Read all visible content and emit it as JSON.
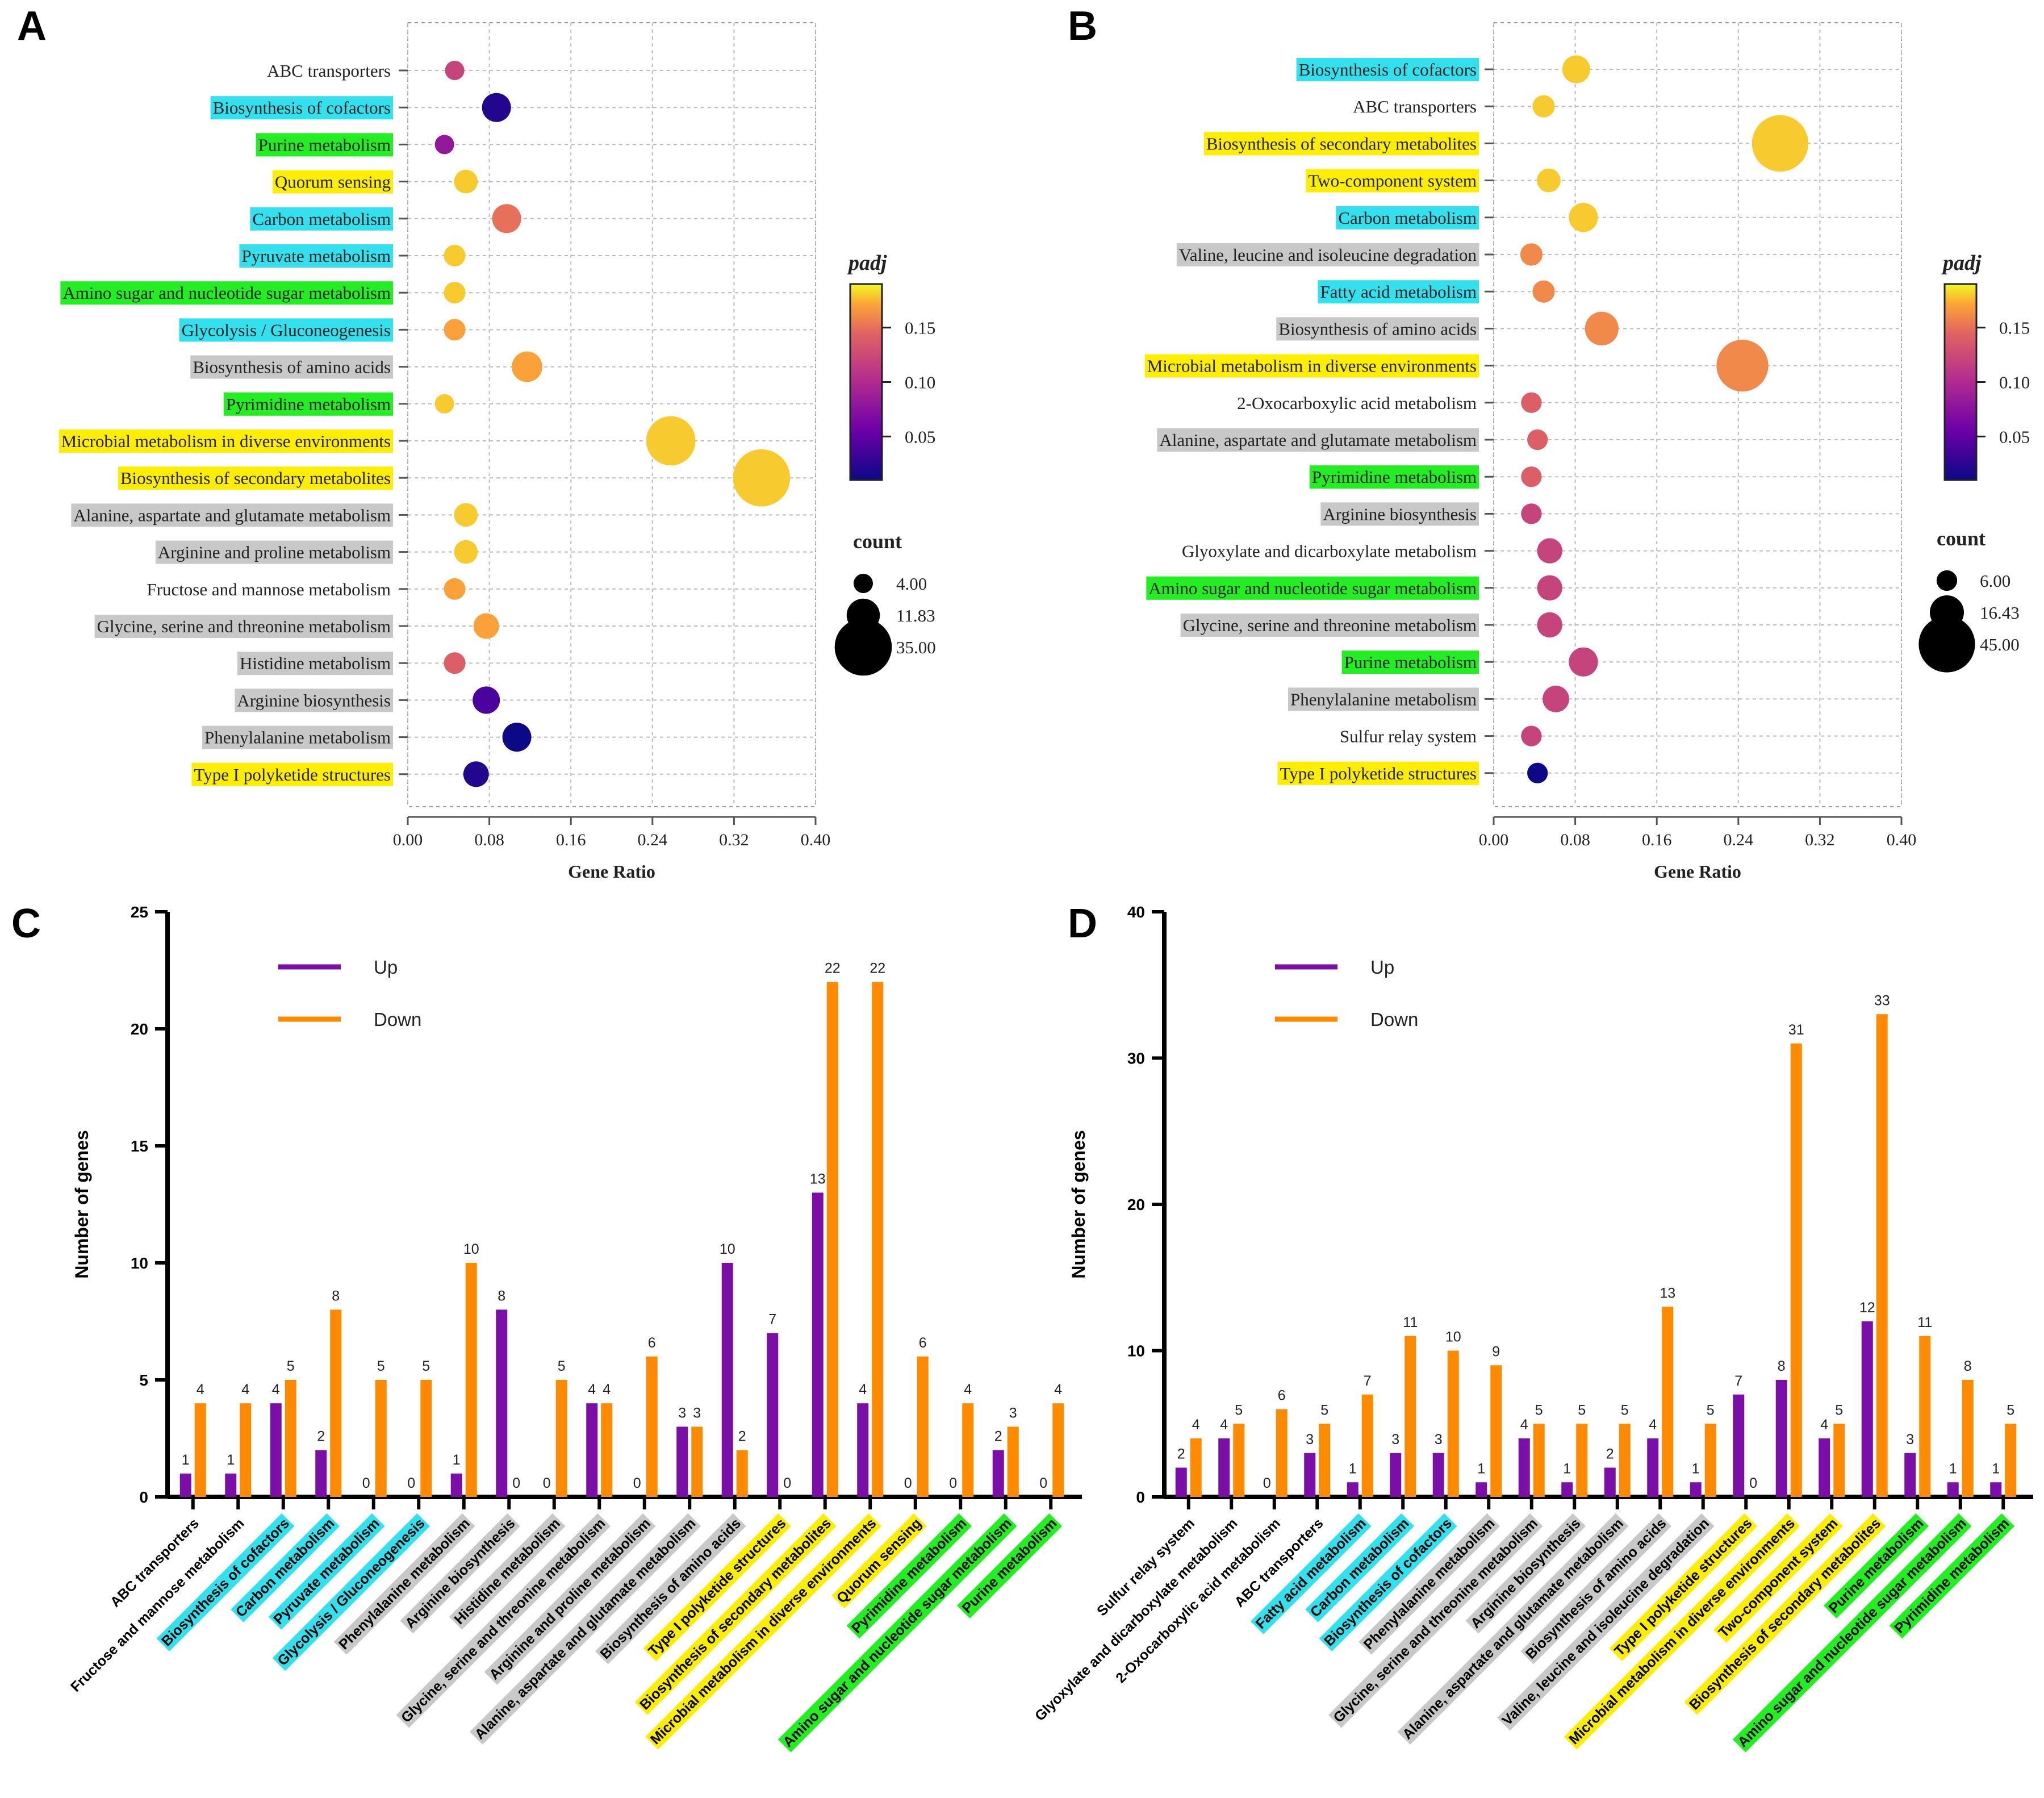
{
  "panel_letters": [
    "A",
    "B",
    "C",
    "D"
  ],
  "colors": {
    "cyan": "#33e0ee",
    "green": "#22ee22",
    "yellow": "#ffee00",
    "gray": "#c8c8c8",
    "up": "#7a0ea6",
    "down": "#ff8a00"
  },
  "chart_data": [
    {
      "panel": "A",
      "type": "scatter",
      "xlabel": "Gene Ratio",
      "xlim": [
        0.0,
        0.4
      ],
      "xticks": [
        "0.00",
        "0.08",
        "0.16",
        "0.24",
        "0.32",
        "0.40"
      ],
      "colorbar": {
        "title": "padj",
        "ticks": [
          "0.15",
          "0.10",
          "0.05"
        ],
        "tick_values": [
          0.15,
          0.1,
          0.05
        ],
        "range": [
          0.01,
          0.19
        ]
      },
      "size_legend": {
        "title": "count",
        "labels": [
          "4.00",
          "11.83",
          "35.00"
        ],
        "values": [
          4,
          11.83,
          35
        ]
      },
      "points": [
        {
          "term": "ABC transporters",
          "highlight": "none",
          "ratio": 0.046,
          "count": 4,
          "padj": 0.12
        },
        {
          "term": "Biosynthesis of cofactors",
          "highlight": "cyan",
          "ratio": 0.087,
          "count": 9,
          "padj": 0.02
        },
        {
          "term": "Purine metabolism",
          "highlight": "green",
          "ratio": 0.036,
          "count": 4,
          "padj": 0.08
        },
        {
          "term": "Quorum sensing",
          "highlight": "yellow",
          "ratio": 0.057,
          "count": 6,
          "padj": 0.18
        },
        {
          "term": "Carbon metabolism",
          "highlight": "cyan",
          "ratio": 0.097,
          "count": 9,
          "padj": 0.15
        },
        {
          "term": "Pyruvate metabolism",
          "highlight": "cyan",
          "ratio": 0.046,
          "count": 5,
          "padj": 0.18
        },
        {
          "term": "Amino sugar and nucleotide sugar metabolism",
          "highlight": "green",
          "ratio": 0.046,
          "count": 5,
          "padj": 0.18
        },
        {
          "term": "Glycolysis / Gluconeogenesis",
          "highlight": "cyan",
          "ratio": 0.046,
          "count": 5,
          "padj": 0.17
        },
        {
          "term": "Biosynthesis of amino acids",
          "highlight": "gray",
          "ratio": 0.117,
          "count": 10,
          "padj": 0.17
        },
        {
          "term": "Pyrimidine metabolism",
          "highlight": "green",
          "ratio": 0.036,
          "count": 4,
          "padj": 0.18
        },
        {
          "term": "Microbial metabolism in diverse environments",
          "highlight": "yellow",
          "ratio": 0.258,
          "count": 26,
          "padj": 0.18
        },
        {
          "term": "Biosynthesis of secondary metabolites",
          "highlight": "yellow",
          "ratio": 0.347,
          "count": 35,
          "padj": 0.18
        },
        {
          "term": "Alanine, aspartate and glutamate metabolism",
          "highlight": "gray",
          "ratio": 0.057,
          "count": 6,
          "padj": 0.18
        },
        {
          "term": "Arginine and proline metabolism",
          "highlight": "gray",
          "ratio": 0.057,
          "count": 6,
          "padj": 0.18
        },
        {
          "term": "Fructose and mannose metabolism",
          "highlight": "none",
          "ratio": 0.046,
          "count": 5,
          "padj": 0.17
        },
        {
          "term": "Glycine, serine and threonine metabolism",
          "highlight": "gray",
          "ratio": 0.077,
          "count": 7,
          "padj": 0.17
        },
        {
          "term": "Histidine metabolism",
          "highlight": "gray",
          "ratio": 0.046,
          "count": 5,
          "padj": 0.14
        },
        {
          "term": "Arginine biosynthesis",
          "highlight": "gray",
          "ratio": 0.077,
          "count": 8,
          "padj": 0.04
        },
        {
          "term": "Phenylalanine metabolism",
          "highlight": "gray",
          "ratio": 0.107,
          "count": 9,
          "padj": 0.01
        },
        {
          "term": "Type I polyketide structures",
          "highlight": "yellow",
          "ratio": 0.067,
          "count": 7,
          "padj": 0.02
        }
      ]
    },
    {
      "panel": "B",
      "type": "scatter",
      "xlabel": "Gene Ratio",
      "xlim": [
        0.0,
        0.4
      ],
      "xticks": [
        "0.00",
        "0.08",
        "0.16",
        "0.24",
        "0.32",
        "0.40"
      ],
      "colorbar": {
        "title": "padj",
        "ticks": [
          "0.15",
          "0.10",
          "0.05"
        ],
        "tick_values": [
          0.15,
          0.1,
          0.05
        ],
        "range": [
          0.01,
          0.19
        ]
      },
      "size_legend": {
        "title": "count",
        "labels": [
          "6.00",
          "16.43",
          "45.00"
        ],
        "values": [
          6,
          16.43,
          45
        ]
      },
      "points": [
        {
          "term": "Biosynthesis of cofactors",
          "highlight": "cyan",
          "ratio": 0.081,
          "count": 11,
          "padj": 0.18
        },
        {
          "term": "ABC transporters",
          "highlight": "none",
          "ratio": 0.049,
          "count": 7,
          "padj": 0.18
        },
        {
          "term": "Biosynthesis of secondary metabolites",
          "highlight": "yellow",
          "ratio": 0.281,
          "count": 45,
          "padj": 0.18
        },
        {
          "term": "Two-component system",
          "highlight": "yellow",
          "ratio": 0.054,
          "count": 8,
          "padj": 0.18
        },
        {
          "term": "Carbon metabolism",
          "highlight": "cyan",
          "ratio": 0.088,
          "count": 12,
          "padj": 0.18
        },
        {
          "term": "Valine, leucine and isoleucine degradation",
          "highlight": "gray",
          "ratio": 0.037,
          "count": 7,
          "padj": 0.16
        },
        {
          "term": "Fatty acid metabolism",
          "highlight": "cyan",
          "ratio": 0.049,
          "count": 7,
          "padj": 0.16
        },
        {
          "term": "Biosynthesis of amino acids",
          "highlight": "gray",
          "ratio": 0.106,
          "count": 16,
          "padj": 0.16
        },
        {
          "term": "Microbial metabolism in diverse environments",
          "highlight": "yellow",
          "ratio": 0.244,
          "count": 38,
          "padj": 0.16
        },
        {
          "term": "2-Oxocarboxylic acid metabolism",
          "highlight": "none",
          "ratio": 0.037,
          "count": 6,
          "padj": 0.14
        },
        {
          "term": "Alanine, aspartate and glutamate metabolism",
          "highlight": "gray",
          "ratio": 0.043,
          "count": 6,
          "padj": 0.14
        },
        {
          "term": "Pyrimidine metabolism",
          "highlight": "green",
          "ratio": 0.037,
          "count": 6,
          "padj": 0.14
        },
        {
          "term": "Arginine biosynthesis",
          "highlight": "gray",
          "ratio": 0.037,
          "count": 6,
          "padj": 0.12
        },
        {
          "term": "Glyoxylate and dicarboxylate metabolism",
          "highlight": "none",
          "ratio": 0.055,
          "count": 9,
          "padj": 0.12
        },
        {
          "term": "Amino sugar and nucleotide sugar metabolism",
          "highlight": "green",
          "ratio": 0.055,
          "count": 9,
          "padj": 0.12
        },
        {
          "term": "Glycine, serine and threonine metabolism",
          "highlight": "gray",
          "ratio": 0.055,
          "count": 9,
          "padj": 0.12
        },
        {
          "term": "Purine metabolism",
          "highlight": "green",
          "ratio": 0.088,
          "count": 12,
          "padj": 0.12
        },
        {
          "term": "Phenylalanine metabolism",
          "highlight": "gray",
          "ratio": 0.061,
          "count": 10,
          "padj": 0.12
        },
        {
          "term": "Sulfur relay system",
          "highlight": "none",
          "ratio": 0.037,
          "count": 6,
          "padj": 0.12
        },
        {
          "term": "Type I polyketide structures",
          "highlight": "yellow",
          "ratio": 0.043,
          "count": 6,
          "padj": 0.01
        }
      ]
    },
    {
      "panel": "C",
      "type": "bar",
      "ylabel": "Number of genes",
      "ylim": [
        0,
        25
      ],
      "yticks": [
        "0",
        "5",
        "10",
        "15",
        "20",
        "25"
      ],
      "legend": [
        "Up",
        "Down"
      ],
      "categories": [
        {
          "label": "ABC transporters",
          "highlight": "none"
        },
        {
          "label": "Fructose and mannose metabolism",
          "highlight": "none"
        },
        {
          "label": "Biosynthesis of cofactors",
          "highlight": "cyan"
        },
        {
          "label": "Carbon metabolism",
          "highlight": "cyan"
        },
        {
          "label": "Pyruvate metabolism",
          "highlight": "cyan"
        },
        {
          "label": "Glycolysis / Gluconeogenesis",
          "highlight": "cyan"
        },
        {
          "label": "Phenylalanine metabolism",
          "highlight": "gray"
        },
        {
          "label": "Arginine biosynthesis",
          "highlight": "gray"
        },
        {
          "label": "Histidine metabolism",
          "highlight": "gray"
        },
        {
          "label": "Glycine, serine and threonine metabolism",
          "highlight": "gray"
        },
        {
          "label": "Arginine and proline metabolism",
          "highlight": "gray"
        },
        {
          "label": "Alanine, aspartate and glutamate metabolism",
          "highlight": "gray"
        },
        {
          "label": "Biosynthesis of amino acids",
          "highlight": "gray"
        },
        {
          "label": "Type I polyketide structures",
          "highlight": "yellow"
        },
        {
          "label": "Biosynthesis of secondary metabolites",
          "highlight": "yellow"
        },
        {
          "label": "Microbial metabolism in diverse environments",
          "highlight": "yellow"
        },
        {
          "label": "Quorum sensing",
          "highlight": "yellow"
        },
        {
          "label": "Pyrimidine metabolism",
          "highlight": "green"
        },
        {
          "label": "Amino sugar and nucleotide sugar metabolism",
          "highlight": "green"
        },
        {
          "label": "Purine metabolism",
          "highlight": "green"
        }
      ],
      "series": [
        {
          "name": "Up",
          "values": [
            1,
            1,
            4,
            2,
            0,
            0,
            1,
            8,
            0,
            4,
            0,
            3,
            10,
            7,
            13,
            4,
            0,
            0,
            2,
            0
          ]
        },
        {
          "name": "Down",
          "values": [
            4,
            4,
            5,
            8,
            5,
            5,
            10,
            0,
            5,
            4,
            6,
            3,
            2,
            0,
            22,
            22,
            6,
            4,
            3,
            4
          ]
        }
      ]
    },
    {
      "panel": "D",
      "type": "bar",
      "ylabel": "Number of genes",
      "ylim": [
        0,
        40
      ],
      "yticks": [
        "0",
        "10",
        "20",
        "30",
        "40"
      ],
      "legend": [
        "Up",
        "Down"
      ],
      "categories": [
        {
          "label": "Sulfur relay system",
          "highlight": "none"
        },
        {
          "label": "Glyoxylate and dicarboxylate metabolism",
          "highlight": "none"
        },
        {
          "label": "2-Oxocarboxylic acid metabolism",
          "highlight": "none"
        },
        {
          "label": "ABC transporters",
          "highlight": "none"
        },
        {
          "label": "Fatty acid metabolism",
          "highlight": "cyan"
        },
        {
          "label": "Carbon metabolism",
          "highlight": "cyan"
        },
        {
          "label": "Biosynthesis of cofactors",
          "highlight": "cyan"
        },
        {
          "label": "Phenylalanine metabolism",
          "highlight": "gray"
        },
        {
          "label": "Glycine, serine and threonine metabolism",
          "highlight": "gray"
        },
        {
          "label": "Arginine biosynthesis",
          "highlight": "gray"
        },
        {
          "label": "Alanine, aspartate and glutamate metabolism",
          "highlight": "gray"
        },
        {
          "label": "Biosynthesis of amino acids",
          "highlight": "gray"
        },
        {
          "label": "Valine, leucine and isoleucine degradation",
          "highlight": "gray"
        },
        {
          "label": "Type I polyketide structures",
          "highlight": "yellow"
        },
        {
          "label": "Microbial metabolism in diverse environments",
          "highlight": "yellow"
        },
        {
          "label": "Two-component system",
          "highlight": "yellow"
        },
        {
          "label": "Biosynthesis of secondary metabolites",
          "highlight": "yellow"
        },
        {
          "label": "Purine metabolism",
          "highlight": "green"
        },
        {
          "label": "Amino sugar and nucleotide sugar metabolism",
          "highlight": "green"
        },
        {
          "label": "Pyrimidine metabolism",
          "highlight": "green"
        }
      ],
      "series": [
        {
          "name": "Up",
          "values": [
            2,
            4,
            0,
            3,
            1,
            3,
            3,
            1,
            4,
            1,
            2,
            4,
            1,
            7,
            8,
            4,
            12,
            3,
            1,
            1
          ]
        },
        {
          "name": "Down",
          "values": [
            4,
            5,
            6,
            5,
            7,
            11,
            10,
            9,
            5,
            5,
            5,
            13,
            5,
            0,
            31,
            5,
            33,
            11,
            8,
            5
          ]
        }
      ]
    }
  ]
}
